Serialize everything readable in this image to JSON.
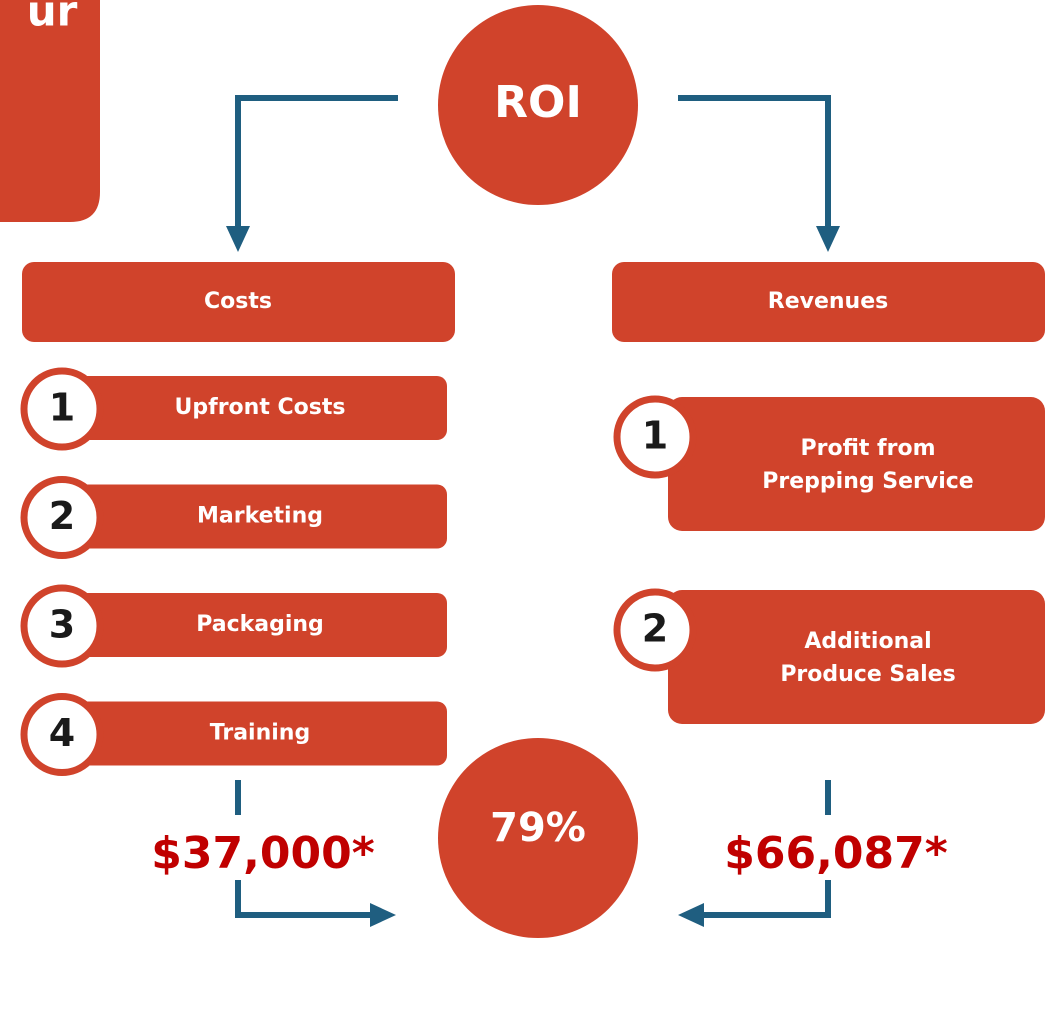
{
  "corner_box": {
    "text": "ur"
  },
  "top_node": {
    "label": "ROI"
  },
  "costs": {
    "title": "Costs",
    "items": [
      {
        "number": "1",
        "label": "Upfront Costs"
      },
      {
        "number": "2",
        "label": "Marketing"
      },
      {
        "number": "3",
        "label": "Packaging"
      },
      {
        "number": "4",
        "label": "Training"
      }
    ],
    "total": "$37,000*"
  },
  "revenues": {
    "title": "Revenues",
    "items": [
      {
        "number": "1",
        "label": [
          "Profit from",
          "Prepping Service"
        ]
      },
      {
        "number": "2",
        "label": [
          "Additional",
          "Produce Sales"
        ]
      }
    ],
    "total": "$66,087*"
  },
  "result_node": {
    "label": "79%"
  }
}
